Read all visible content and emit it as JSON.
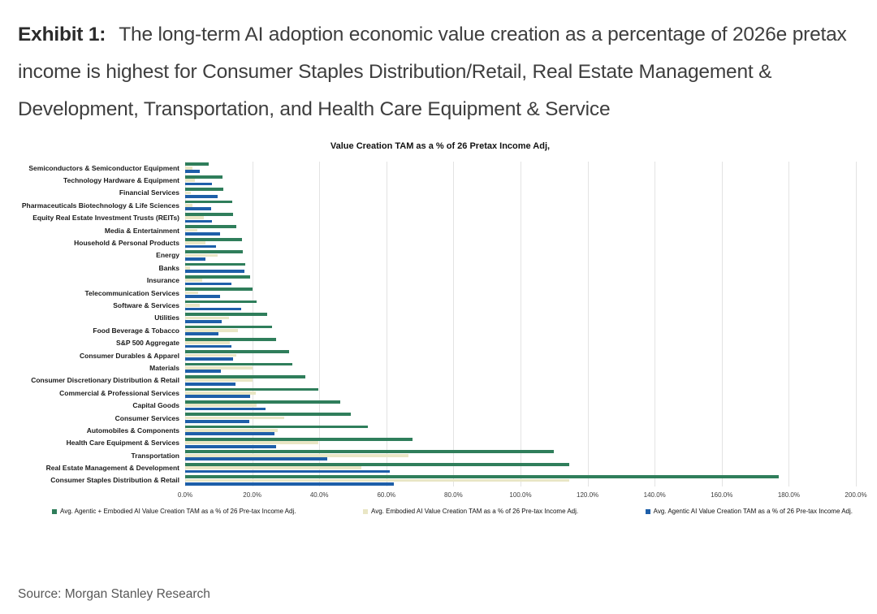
{
  "exhibit": {
    "label": "Exhibit 1:",
    "title": "The long-term AI adoption economic value creation as a percentage of 2026e pretax income is highest for Consumer Staples Distribution/Retail, Real Estate Management & Development, Transportation, and Health Care Equipment & Service"
  },
  "source": "Source: Morgan Stanley Research",
  "colors": {
    "agentic_embodied_green": "#2f7e5b",
    "embodied_cream": "#e9e6c5",
    "agentic_blue": "#1e5fa9",
    "gridline": "#e3e3e3"
  },
  "chart_data": {
    "type": "bar",
    "orientation": "horizontal",
    "title": "Value Creation TAM as a % of 26 Pretax Income Adj,",
    "xlabel": "",
    "ylabel": "",
    "xlim": [
      0,
      200
    ],
    "grid": true,
    "legend_position": "bottom",
    "x_ticks": [
      "0.0%",
      "20.0%",
      "40.0%",
      "60.0%",
      "80.0%",
      "100.0%",
      "120.0%",
      "140.0%",
      "160.0%",
      "180.0%",
      "200.0%"
    ],
    "categories": [
      "Semiconductors & Semiconductor Equipment",
      "Technology Hardware & Equipment",
      "Financial Services",
      "Pharmaceuticals Biotechnology & Life Sciences",
      "Equity Real Estate Investment Trusts (REITs)",
      "Media & Entertainment",
      "Household & Personal Products",
      "Energy",
      "Banks",
      "Insurance",
      "Telecommunication Services",
      "Software & Services",
      "Utilities",
      "Food Beverage & Tobacco",
      "S&P 500 Aggregate",
      "Consumer Durables & Apparel",
      "Materials",
      "Consumer Discretionary Distribution & Retail",
      "Commercial & Professional Services",
      "Capital Goods",
      "Consumer Services",
      "Automobiles & Components",
      "Health Care Equipment & Services",
      "Transportation",
      "Real Estate Management & Development",
      "Consumer Staples Distribution & Retail"
    ],
    "series": [
      {
        "name": "Avg. Agentic + Embodied AI Value Creation TAM as a % of 26 Pre-tax Income Adj.",
        "color": "#2f7e5b",
        "values": [
          7.1,
          11.1,
          11.3,
          14.1,
          14.4,
          15.2,
          17.0,
          17.1,
          18.0,
          19.4,
          20.0,
          21.2,
          24.4,
          26.0,
          27.2,
          31.1,
          32.0,
          35.8,
          39.6,
          46.2,
          49.3,
          54.6,
          67.9,
          109.9,
          114.5,
          177.0
        ]
      },
      {
        "name": "Avg. Embodied AI Value Creation TAM as a % of 26 Pre-tax Income Adj.",
        "color": "#e9e6c5",
        "values": [
          2.3,
          3.0,
          1.8,
          2.3,
          5.5,
          3.6,
          6.1,
          9.7,
          1.5,
          5.0,
          3.9,
          4.4,
          13.1,
          15.7,
          13.3,
          15.3,
          20.2,
          20.2,
          21.0,
          21.4,
          29.5,
          27.5,
          39.6,
          66.6,
          52.5,
          114.5
        ]
      },
      {
        "name": "Avg. Agentic AI Value Creation TAM as a % of 26 Pre-tax Income Adj.",
        "color": "#1e5fa9",
        "values": [
          4.4,
          7.9,
          9.7,
          7.7,
          8.1,
          10.3,
          9.3,
          6.1,
          17.6,
          13.7,
          10.3,
          16.8,
          10.9,
          9.9,
          13.9,
          14.4,
          10.7,
          15.0,
          19.4,
          24.0,
          19.2,
          26.7,
          27.1,
          42.4,
          61.0,
          62.2
        ]
      }
    ]
  }
}
